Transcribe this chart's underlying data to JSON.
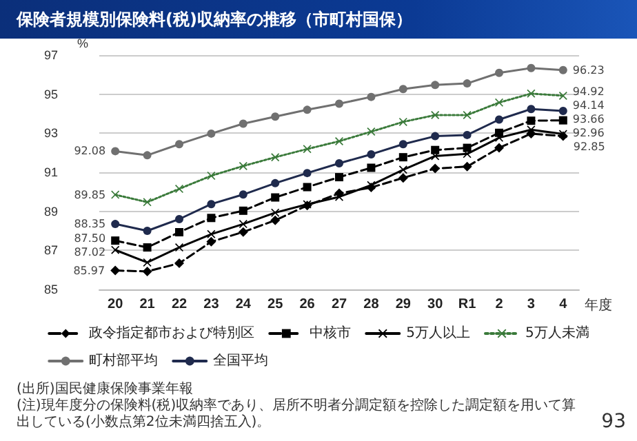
{
  "chart_data": {
    "type": "line",
    "title": "保険者規模別保険料(税)収納率の推移（市町村国保）",
    "ylabel": "%",
    "xlabel": "年度",
    "categories": [
      "20",
      "21",
      "22",
      "23",
      "24",
      "25",
      "26",
      "27",
      "28",
      "29",
      "30",
      "R1",
      "2",
      "3",
      "4"
    ],
    "series": [
      {
        "name": "政令指定都市および特別区",
        "color": "#000000",
        "marker": "diamond",
        "line_style": "dashed",
        "values": [
          85.97,
          85.92,
          86.34,
          87.44,
          87.94,
          88.54,
          89.3,
          89.92,
          90.22,
          90.71,
          91.19,
          91.29,
          92.25,
          92.98,
          92.85
        ],
        "value_labels": [
          "85.97",
          null,
          null,
          null,
          null,
          null,
          null,
          null,
          null,
          null,
          null,
          null,
          null,
          null,
          "92.85"
        ]
      },
      {
        "name": "中核市",
        "color": "#000000",
        "marker": "square",
        "line_style": "dashed",
        "values": [
          87.5,
          87.15,
          87.93,
          88.66,
          89.03,
          89.71,
          90.24,
          90.75,
          91.23,
          91.77,
          92.14,
          92.25,
          93.02,
          93.64,
          93.66
        ],
        "value_labels": [
          "87.50",
          null,
          null,
          null,
          null,
          null,
          null,
          null,
          null,
          null,
          null,
          null,
          null,
          null,
          "93.66"
        ]
      },
      {
        "name": "5万人以上",
        "color": "#000000",
        "marker": "cross",
        "line_style": "solid",
        "values": [
          87.02,
          86.38,
          87.15,
          87.83,
          88.35,
          88.93,
          89.36,
          89.74,
          90.34,
          91.13,
          91.83,
          91.94,
          92.77,
          93.18,
          92.96
        ],
        "value_labels": [
          "87.02",
          null,
          null,
          null,
          null,
          null,
          null,
          null,
          null,
          null,
          null,
          null,
          null,
          null,
          "92.96"
        ]
      },
      {
        "name": "5万人未満",
        "color": "#3a7a3a",
        "marker": "cross",
        "line_style": "dotted",
        "values": [
          89.85,
          89.47,
          90.15,
          90.82,
          91.32,
          91.77,
          92.19,
          92.59,
          93.08,
          93.58,
          93.93,
          93.93,
          94.57,
          95.03,
          94.92
        ],
        "value_labels": [
          "89.85",
          null,
          null,
          null,
          null,
          null,
          null,
          null,
          null,
          null,
          null,
          null,
          null,
          null,
          "94.92"
        ]
      },
      {
        "name": "町村部平均",
        "color": "#707070",
        "marker": "circle",
        "line_style": "solid",
        "values": [
          92.08,
          91.87,
          92.44,
          92.98,
          93.49,
          93.85,
          94.2,
          94.51,
          94.86,
          95.26,
          95.47,
          95.55,
          96.09,
          96.34,
          96.23
        ],
        "value_labels": [
          "92.08",
          null,
          null,
          null,
          null,
          null,
          null,
          null,
          null,
          null,
          null,
          null,
          null,
          null,
          "96.23"
        ]
      },
      {
        "name": "全国平均",
        "color": "#1f2a4d",
        "marker": "circle",
        "line_style": "solid",
        "values": [
          88.35,
          88.0,
          88.6,
          89.37,
          89.86,
          90.44,
          90.96,
          91.46,
          91.92,
          92.44,
          92.85,
          92.91,
          93.7,
          94.24,
          94.14
        ],
        "value_labels": [
          "88.35",
          null,
          null,
          null,
          null,
          null,
          null,
          null,
          null,
          null,
          null,
          null,
          null,
          null,
          "94.14"
        ]
      }
    ],
    "ylim": [
      85,
      97
    ],
    "yticks": [
      85,
      87,
      89,
      91,
      93,
      95,
      97
    ],
    "grid": "y",
    "legend": "bottom",
    "annotations": [
      "(出所)国民健康保険事業年報",
      "(注)現年度分の保険料(税)収納率であり、居所不明者分調定額を控除した調定額を用いて算出している(小数点第2位未満四捨五入)。",
      "93"
    ]
  }
}
